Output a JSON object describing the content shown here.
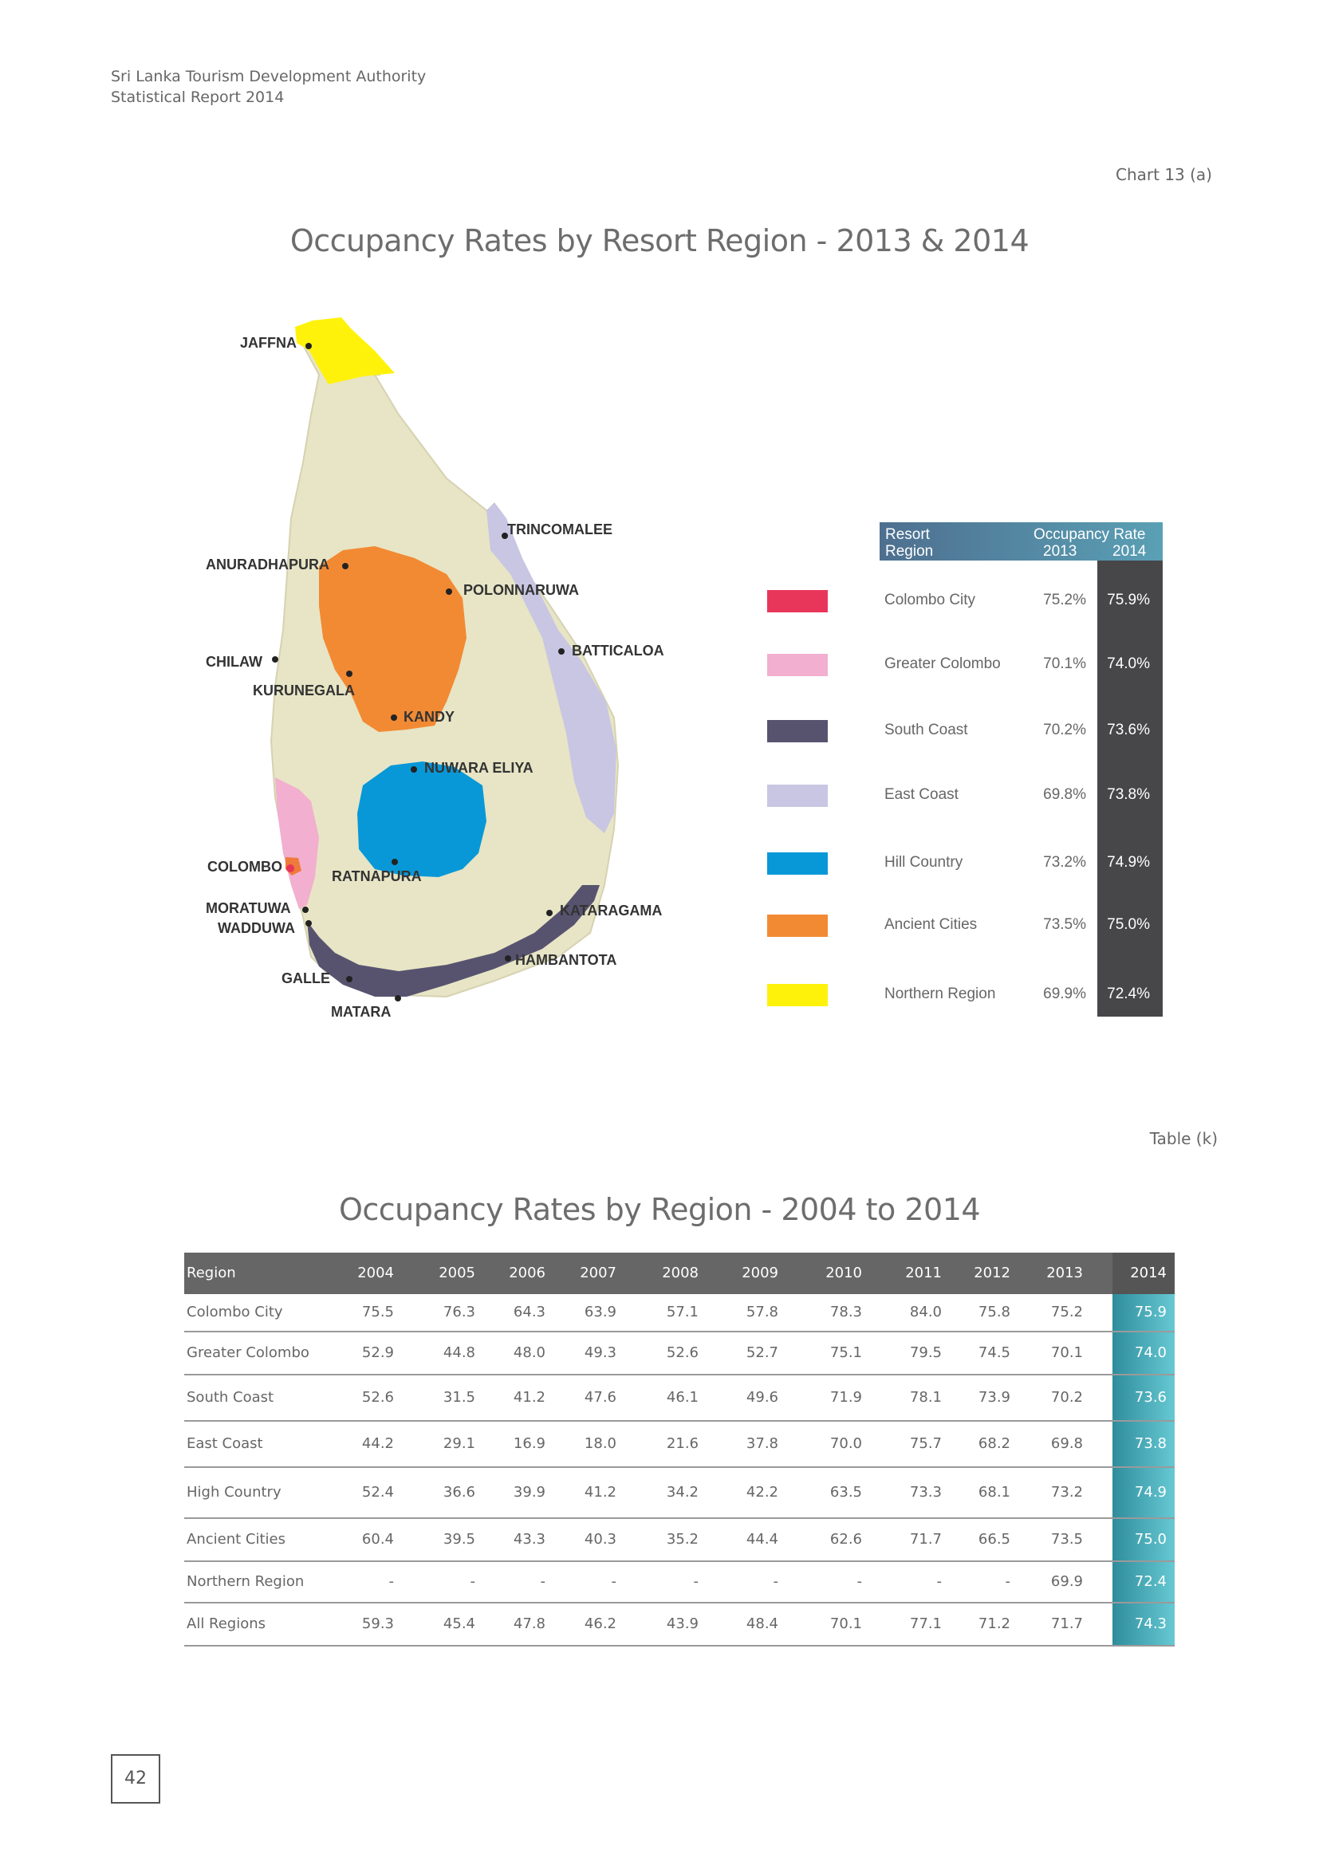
{
  "header": {
    "line1": "Sri Lanka Tourism Development Authority",
    "line2": "Statistical Report 2014"
  },
  "chart_caption": "Chart 13 (a)",
  "chart_title": "Occupancy Rates by Resort Region  - 2013 & 2014",
  "map": {
    "cities": [
      "JAFFNA",
      "TRINCOMALEE",
      "ANURADHAPURA",
      "POLONNARUWA",
      "BATTICALOA",
      "CHILAW",
      "KURUNEGALA",
      "KANDY",
      "NUWARA ELIYA",
      "COLOMBO",
      "RATNAPURA",
      "MORATUWA",
      "WADDUWA",
      "KATARAGAMA",
      "HAMBANTOTA",
      "GALLE",
      "MATARA"
    ]
  },
  "legend": {
    "header": {
      "col1_line1": "Resort",
      "col1_line2": "Region",
      "col2_line1": "Occupancy Rate",
      "year1": "2013",
      "year2": "2014"
    },
    "rows": [
      {
        "region": "Colombo City",
        "y2013": "75.2%",
        "y2014": "75.9%",
        "color": "#e8365a"
      },
      {
        "region": "Greater Colombo",
        "y2013": "70.1%",
        "y2014": "74.0%",
        "color": "#f2afcf"
      },
      {
        "region": "South Coast",
        "y2013": "70.2%",
        "y2014": "73.6%",
        "color": "#57536f"
      },
      {
        "region": "East Coast",
        "y2013": "69.8%",
        "y2014": "73.8%",
        "color": "#c8c6e2"
      },
      {
        "region": "Hill Country",
        "y2013": "73.2%",
        "y2014": "74.9%",
        "color": "#0898d8"
      },
      {
        "region": "Ancient Cities",
        "y2013": "73.5%",
        "y2014": "75.0%",
        "color": "#f28a34"
      },
      {
        "region": "Northern Region",
        "y2013": "69.9%",
        "y2014": "72.4%",
        "color": "#fff20a"
      }
    ]
  },
  "table_caption": "Table (k)",
  "table_title": "Occupancy Rates by Region  - 2004 to 2014",
  "table": {
    "headers": [
      "Region",
      "2004",
      "2005",
      "2006",
      "2007",
      "2008",
      "2009",
      "2010",
      "2011",
      "2012",
      "2013",
      "2014"
    ],
    "rows": [
      [
        "Colombo City",
        "75.5",
        "76.3",
        "64.3",
        "63.9",
        "57.1",
        "57.8",
        "78.3",
        "84.0",
        "75.8",
        "75.2",
        "75.9"
      ],
      [
        "Greater Colombo",
        "52.9",
        "44.8",
        "48.0",
        "49.3",
        "52.6",
        "52.7",
        "75.1",
        "79.5",
        "74.5",
        "70.1",
        "74.0"
      ],
      [
        "South Coast",
        "52.6",
        "31.5",
        "41.2",
        "47.6",
        "46.1",
        "49.6",
        "71.9",
        "78.1",
        "73.9",
        "70.2",
        "73.6"
      ],
      [
        "East Coast",
        "44.2",
        "29.1",
        "16.9",
        "18.0",
        "21.6",
        "37.8",
        "70.0",
        "75.7",
        "68.2",
        "69.8",
        "73.8"
      ],
      [
        "High Country",
        "52.4",
        "36.6",
        "39.9",
        "41.2",
        "34.2",
        "42.2",
        "63.5",
        "73.3",
        "68.1",
        "73.2",
        "74.9"
      ],
      [
        "Ancient Cities",
        "60.4",
        "39.5",
        "43.3",
        "40.3",
        "35.2",
        "44.4",
        "62.6",
        "71.7",
        "66.5",
        "73.5",
        "75.0"
      ],
      [
        "Northern Region",
        "-",
        "-",
        "-",
        "-",
        "-",
        "-",
        "-",
        "-",
        "-",
        "69.9",
        "72.4"
      ],
      [
        "All Regions",
        "59.3",
        "45.4",
        "47.8",
        "46.2",
        "43.9",
        "48.4",
        "70.1",
        "77.1",
        "71.2",
        "71.7",
        "74.3"
      ]
    ]
  },
  "page_number": "42"
}
